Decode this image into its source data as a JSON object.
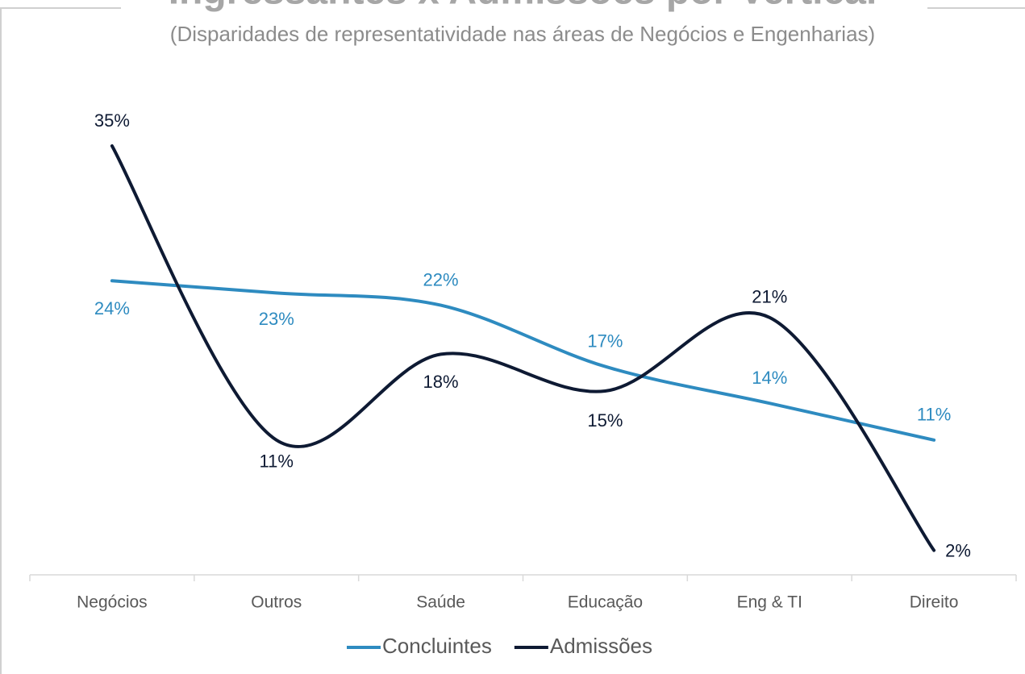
{
  "chart_data": {
    "type": "line",
    "title": "Ingressantes x Admissões por Vertical",
    "subtitle": "(Disparidades de representatividade nas áreas de Negócios e Engenharias)",
    "categories": [
      "Negócios",
      "Outros",
      "Saúde",
      "Educação",
      "Eng & TI",
      "Direito"
    ],
    "series": [
      {
        "name": "Concluintes",
        "color": "#2e8bc0",
        "values": [
          24,
          23,
          22,
          17,
          14,
          11
        ],
        "value_labels": [
          "24%",
          "23%",
          "22%",
          "17%",
          "14%",
          "11%"
        ]
      },
      {
        "name": "Admissões",
        "color": "#0e1a33",
        "values": [
          35,
          11,
          18,
          15,
          21,
          2
        ],
        "value_labels": [
          "35%",
          "11%",
          "18%",
          "15%",
          "21%",
          "2%"
        ]
      }
    ]
  }
}
